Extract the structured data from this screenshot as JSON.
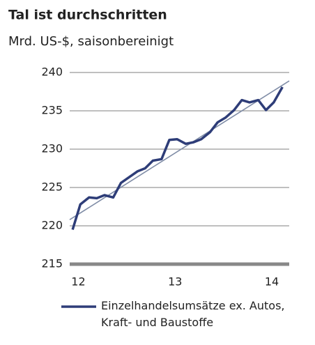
{
  "chart_data": {
    "type": "line",
    "title": "Tal ist durchschritten",
    "subtitle": "Mrd. US-$, saisonbereinigt",
    "x": [
      11.94,
      12.02,
      12.11,
      12.19,
      12.27,
      12.36,
      12.44,
      12.52,
      12.61,
      12.69,
      12.77,
      12.86,
      12.94,
      13.02,
      13.11,
      13.19,
      13.27,
      13.36,
      13.44,
      13.52,
      13.61,
      13.69,
      13.77,
      13.86,
      13.94,
      14.02,
      14.11
    ],
    "series": [
      {
        "name": "Einzelhandelsumsätze ex. Autos, Kraft- und Baustoffe",
        "color": "#2e3d78",
        "values": [
          219.5,
          222.8,
          223.7,
          223.6,
          224.0,
          223.7,
          225.6,
          226.3,
          227.1,
          227.5,
          228.5,
          228.7,
          231.2,
          231.3,
          230.7,
          230.9,
          231.3,
          232.2,
          233.5,
          234.1,
          235.1,
          236.4,
          236.1,
          236.4,
          235.1,
          236.1,
          238.1
        ]
      }
    ],
    "trend": {
      "x": [
        11.91,
        14.18
      ],
      "values": [
        220.8,
        238.9
      ],
      "color": "#7f8ca6"
    },
    "xlim": [
      11.91,
      14.18
    ],
    "xticks": [
      12,
      13,
      14
    ],
    "ylim": [
      215,
      240
    ],
    "yticks": [
      215,
      220,
      225,
      230,
      235,
      240
    ],
    "grid": true
  }
}
